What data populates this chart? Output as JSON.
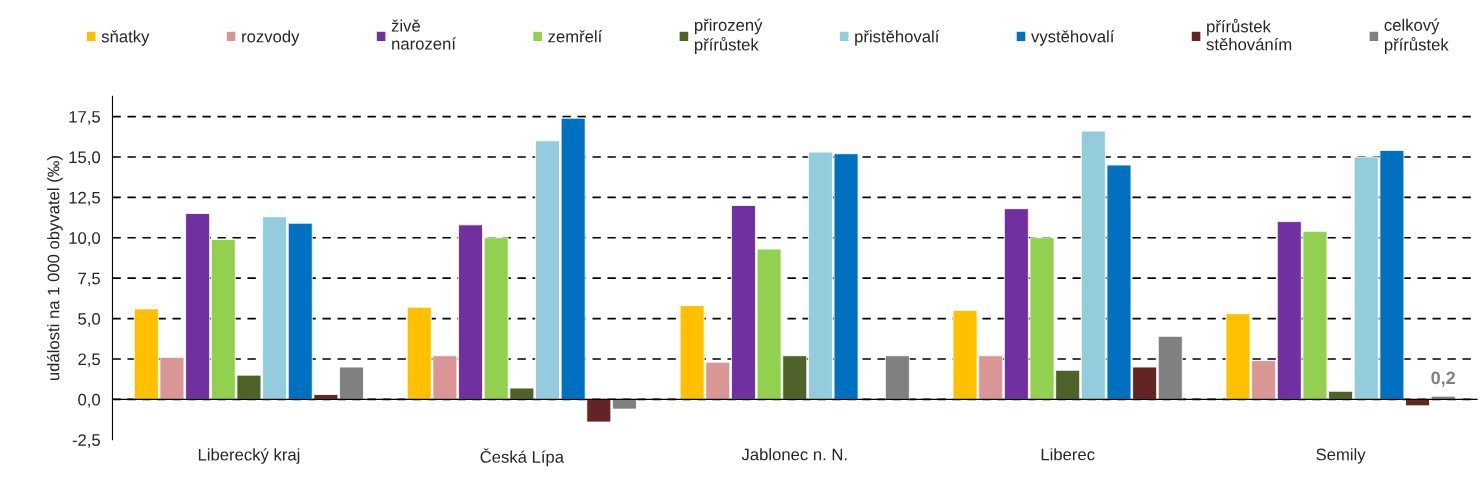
{
  "chart_data": {
    "type": "bar",
    "ylabel": "události na 1 000 obyvatel (‰)",
    "categories": [
      "Liberecký kraj",
      "Česká Lípa",
      "Jablonec n. N.",
      "Liberec",
      "Semily"
    ],
    "series": [
      {
        "name": "sňatky",
        "color": "#ffc000",
        "values": [
          5.6,
          5.7,
          5.8,
          5.5,
          5.3
        ]
      },
      {
        "name": "rozvody",
        "color": "#d99694",
        "values": [
          2.6,
          2.7,
          2.3,
          2.7,
          2.4
        ]
      },
      {
        "name": "živě\nnarození",
        "color": "#7030a0",
        "values": [
          11.5,
          10.8,
          12.0,
          11.8,
          11.0
        ]
      },
      {
        "name": "zemřelí",
        "color": "#92d050",
        "values": [
          9.9,
          10.0,
          9.3,
          10.0,
          10.4
        ]
      },
      {
        "name": "přirozený\npřírůstek",
        "color": "#4f6228",
        "values": [
          1.5,
          0.7,
          2.7,
          1.8,
          0.5
        ]
      },
      {
        "name": "přistěhovalí",
        "color": "#93cddd",
        "values": [
          11.3,
          16.0,
          15.3,
          16.6,
          15.0
        ]
      },
      {
        "name": "vystěhovalí",
        "color": "#0070c0",
        "values": [
          10.9,
          17.4,
          15.2,
          14.5,
          15.4
        ]
      },
      {
        "name": "přírůstek\nstěhováním",
        "color": "#632523",
        "values": [
          0.3,
          -1.4,
          null,
          2.0,
          -0.4
        ]
      },
      {
        "name": "celkový\npřírůstek",
        "color": "#808080",
        "values": [
          2.0,
          -0.6,
          2.7,
          3.9,
          0.2
        ],
        "value_labels": [
          null,
          null,
          null,
          null,
          "0,2"
        ]
      }
    ],
    "ylim": [
      -2.5,
      18.75
    ],
    "yticks": [
      {
        "value": -2.5,
        "label": "-2,5"
      },
      {
        "value": 0,
        "label": "0,0"
      },
      {
        "value": 2.5,
        "label": "2,5"
      },
      {
        "value": 5,
        "label": "5,0"
      },
      {
        "value": 7.5,
        "label": "7,5"
      },
      {
        "value": 10,
        "label": "10,0"
      },
      {
        "value": 12.5,
        "label": "12,5"
      },
      {
        "value": 15,
        "label": "15,0"
      },
      {
        "value": 17.5,
        "label": "17,5"
      }
    ],
    "grid": "y",
    "legend": "top"
  }
}
